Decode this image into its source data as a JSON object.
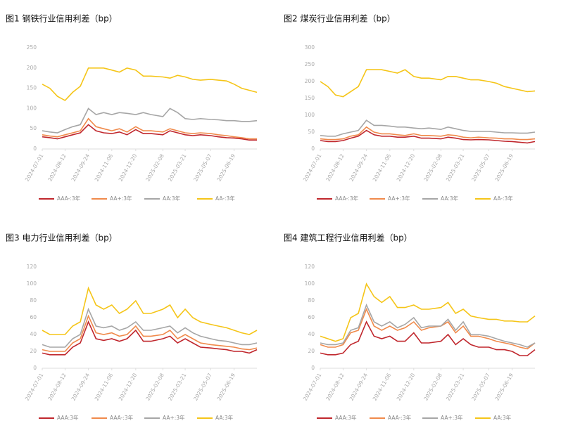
{
  "chart_data": [
    {
      "type": "line",
      "title": "图1 钢铁行业信用利差（bp）",
      "x": [
        "2024-07-01",
        "2024-07-15",
        "2024-07-29",
        "2024-08-12",
        "2024-08-26",
        "2024-09-09",
        "2024-09-24",
        "2024-10-08",
        "2024-10-22",
        "2024-11-06",
        "2024-11-20",
        "2024-12-04",
        "2024-12-20",
        "2025-01-03",
        "2025-01-17",
        "2025-02-08",
        "2025-02-21",
        "2025-03-07",
        "2025-03-21",
        "2025-04-04",
        "2025-04-18",
        "2025-05-07",
        "2025-05-21",
        "2025-06-05",
        "2025-06-19",
        "2025-07-03",
        "2025-07-17",
        "2025-07-31"
      ],
      "xlim": [
        "2024-07-01",
        "2025-07-31"
      ],
      "xticks": [
        "2024-07-01",
        "2024-08-12",
        "2024-09-24",
        "2024-11-06",
        "2024-12-20",
        "2025-02-08",
        "2025-03-21",
        "2025-05-07",
        "2025-06-19"
      ],
      "ylim": [
        0,
        250
      ],
      "yticks": [
        0,
        50,
        100,
        150,
        200,
        250
      ],
      "legend": "bottom",
      "series": [
        {
          "name": "AAA-:3年",
          "color": "#c0272d",
          "values": [
            30,
            28,
            25,
            30,
            35,
            40,
            60,
            45,
            40,
            38,
            42,
            35,
            48,
            38,
            38,
            35,
            45,
            40,
            35,
            33,
            35,
            33,
            30,
            28,
            27,
            25,
            22,
            22
          ]
        },
        {
          "name": "AA+:3年",
          "color": "#f08a4b",
          "values": [
            35,
            32,
            30,
            35,
            40,
            45,
            75,
            55,
            50,
            45,
            50,
            42,
            55,
            45,
            45,
            42,
            50,
            45,
            40,
            38,
            40,
            38,
            35,
            33,
            30,
            28,
            25,
            25
          ]
        },
        {
          "name": "AA:3年",
          "color": "#a6a6a6",
          "values": [
            45,
            42,
            40,
            48,
            55,
            60,
            100,
            85,
            90,
            85,
            90,
            88,
            85,
            90,
            85,
            80,
            100,
            90,
            75,
            73,
            75,
            73,
            72,
            70,
            70,
            68,
            68,
            70
          ]
        },
        {
          "name": "AA-:3年",
          "color": "#f5c518",
          "values": [
            160,
            150,
            130,
            120,
            140,
            155,
            200,
            200,
            200,
            195,
            190,
            200,
            195,
            180,
            180,
            178,
            175,
            182,
            178,
            172,
            170,
            172,
            170,
            168,
            160,
            150,
            145,
            140
          ]
        }
      ]
    },
    {
      "type": "line",
      "title": "图2 煤炭行业信用利差（bp）",
      "x": [
        "2024-07-01",
        "2024-07-15",
        "2024-07-29",
        "2024-08-12",
        "2024-08-26",
        "2024-09-09",
        "2024-09-24",
        "2024-10-08",
        "2024-10-22",
        "2024-11-06",
        "2024-11-20",
        "2024-12-04",
        "2024-12-20",
        "2025-01-03",
        "2025-01-17",
        "2025-02-08",
        "2025-02-21",
        "2025-03-07",
        "2025-03-21",
        "2025-04-04",
        "2025-04-18",
        "2025-05-07",
        "2025-05-21",
        "2025-06-05",
        "2025-06-19",
        "2025-07-03",
        "2025-07-17",
        "2025-07-31"
      ],
      "xlim": [
        "2024-07-01",
        "2025-07-31"
      ],
      "xticks": [
        "2024-07-01",
        "2024-08-12",
        "2024-09-24",
        "2024-11-06",
        "2024-12-20",
        "2025-02-08",
        "2025-03-21",
        "2025-05-07",
        "2025-06-19"
      ],
      "ylim": [
        0,
        300
      ],
      "yticks": [
        0,
        50,
        100,
        150,
        200,
        250,
        300
      ],
      "legend": "bottom",
      "series": [
        {
          "name": "AAA-:3年",
          "color": "#c0272d",
          "values": [
            25,
            22,
            22,
            25,
            32,
            38,
            55,
            42,
            38,
            38,
            35,
            35,
            38,
            32,
            32,
            30,
            35,
            32,
            28,
            27,
            28,
            27,
            25,
            23,
            22,
            20,
            18,
            22
          ]
        },
        {
          "name": "AA+:3年",
          "color": "#f08a4b",
          "values": [
            30,
            28,
            28,
            30,
            38,
            42,
            65,
            50,
            45,
            45,
            42,
            40,
            45,
            40,
            40,
            38,
            42,
            40,
            35,
            33,
            35,
            33,
            32,
            30,
            30,
            28,
            28,
            30
          ]
        },
        {
          "name": "AA:3年",
          "color": "#a6a6a6",
          "values": [
            40,
            38,
            38,
            45,
            50,
            55,
            85,
            70,
            70,
            68,
            65,
            65,
            62,
            60,
            62,
            58,
            65,
            60,
            55,
            52,
            52,
            52,
            50,
            48,
            48,
            47,
            47,
            50
          ]
        },
        {
          "name": "AA-:3年",
          "color": "#f5c518",
          "values": [
            200,
            185,
            160,
            155,
            170,
            185,
            235,
            235,
            235,
            230,
            225,
            235,
            215,
            210,
            210,
            205,
            215,
            215,
            210,
            205,
            205,
            200,
            195,
            185,
            180,
            175,
            170,
            172
          ]
        }
      ]
    },
    {
      "type": "line",
      "title": "图3 电力行业信用利差（bp）",
      "x": [
        "2024-07-01",
        "2024-07-15",
        "2024-07-29",
        "2024-08-12",
        "2024-08-26",
        "2024-09-09",
        "2024-09-24",
        "2024-10-08",
        "2024-10-22",
        "2024-11-06",
        "2024-11-20",
        "2024-12-04",
        "2024-12-20",
        "2025-01-03",
        "2025-01-17",
        "2025-02-08",
        "2025-02-21",
        "2025-03-07",
        "2025-03-21",
        "2025-04-04",
        "2025-04-18",
        "2025-05-07",
        "2025-05-21",
        "2025-06-05",
        "2025-06-19",
        "2025-07-03",
        "2025-07-17",
        "2025-07-31"
      ],
      "xlim": [
        "2024-07-01",
        "2025-07-31"
      ],
      "xticks": [
        "2024-07-01",
        "2024-08-12",
        "2024-09-24",
        "2024-11-06",
        "2024-12-20",
        "2025-02-08",
        "2025-03-21",
        "2025-05-07",
        "2025-06-19"
      ],
      "ylim": [
        0,
        120
      ],
      "yticks": [
        0,
        20,
        40,
        60,
        80,
        100,
        120
      ],
      "legend": "bottom",
      "series": [
        {
          "name": "AAA:3年",
          "color": "#c0272d",
          "values": [
            18,
            16,
            16,
            16,
            25,
            30,
            55,
            35,
            33,
            35,
            32,
            35,
            45,
            32,
            32,
            35,
            38,
            30,
            35,
            30,
            25,
            24,
            23,
            22,
            20,
            20,
            18,
            22
          ]
        },
        {
          "name": "AAA-:3年",
          "color": "#f08a4b",
          "values": [
            22,
            20,
            20,
            20,
            30,
            35,
            62,
            42,
            40,
            42,
            38,
            40,
            50,
            38,
            38,
            40,
            45,
            35,
            40,
            35,
            30,
            28,
            27,
            26,
            25,
            23,
            22,
            24
          ]
        },
        {
          "name": "AA+:3年",
          "color": "#a6a6a6",
          "values": [
            28,
            25,
            25,
            25,
            35,
            40,
            70,
            50,
            48,
            50,
            45,
            48,
            55,
            45,
            45,
            48,
            50,
            42,
            48,
            42,
            38,
            35,
            33,
            32,
            30,
            28,
            28,
            30
          ]
        },
        {
          "name": "AA:3年",
          "color": "#f5c518",
          "values": [
            45,
            40,
            40,
            40,
            50,
            55,
            95,
            75,
            70,
            75,
            65,
            70,
            80,
            65,
            65,
            70,
            75,
            60,
            70,
            60,
            55,
            52,
            50,
            48,
            45,
            42,
            40,
            45
          ]
        }
      ]
    },
    {
      "type": "line",
      "title": "图4 建筑工程行业信用利差（bp）",
      "x": [
        "2024-07-01",
        "2024-07-15",
        "2024-07-29",
        "2024-08-12",
        "2024-08-26",
        "2024-09-09",
        "2024-09-24",
        "2024-10-08",
        "2024-10-22",
        "2024-11-06",
        "2024-11-20",
        "2024-12-04",
        "2024-12-20",
        "2025-01-03",
        "2025-01-17",
        "2025-02-08",
        "2025-02-21",
        "2025-03-07",
        "2025-03-21",
        "2025-04-04",
        "2025-04-18",
        "2025-05-07",
        "2025-05-21",
        "2025-06-05",
        "2025-06-19",
        "2025-07-03",
        "2025-07-17",
        "2025-07-31"
      ],
      "xlim": [
        "2024-07-01",
        "2025-07-31"
      ],
      "xticks": [
        "2024-07-01",
        "2024-08-12",
        "2024-09-24",
        "2024-11-06",
        "2024-12-20",
        "2025-02-08",
        "2025-03-21",
        "2025-05-07",
        "2025-06-19"
      ],
      "ylim": [
        0,
        120
      ],
      "yticks": [
        0,
        20,
        40,
        60,
        80,
        100,
        120
      ],
      "legend": "bottom",
      "series": [
        {
          "name": "AAA:3年",
          "color": "#c0272d",
          "values": [
            18,
            16,
            16,
            18,
            28,
            32,
            55,
            38,
            35,
            38,
            32,
            32,
            42,
            30,
            30,
            32,
            40,
            28,
            35,
            28,
            25,
            25,
            22,
            22,
            20,
            15,
            15,
            22
          ]
        },
        {
          "name": "AAA-:3年",
          "color": "#f08a4b",
          "values": [
            28,
            25,
            25,
            28,
            42,
            45,
            70,
            50,
            45,
            50,
            45,
            48,
            55,
            45,
            48,
            50,
            55,
            42,
            50,
            38,
            38,
            35,
            32,
            30,
            28,
            25,
            23,
            30
          ]
        },
        {
          "name": "AA+:3年",
          "color": "#a6a6a6",
          "values": [
            30,
            28,
            28,
            30,
            45,
            48,
            75,
            55,
            50,
            55,
            48,
            52,
            60,
            48,
            50,
            50,
            58,
            45,
            55,
            40,
            40,
            38,
            35,
            32,
            30,
            28,
            25,
            30
          ]
        },
        {
          "name": "AA:3年",
          "color": "#f5c518",
          "values": [
            38,
            35,
            32,
            35,
            60,
            65,
            100,
            85,
            78,
            85,
            72,
            72,
            75,
            70,
            70,
            72,
            78,
            65,
            70,
            62,
            60,
            58,
            58,
            56,
            56,
            55,
            55,
            62
          ]
        }
      ]
    }
  ]
}
